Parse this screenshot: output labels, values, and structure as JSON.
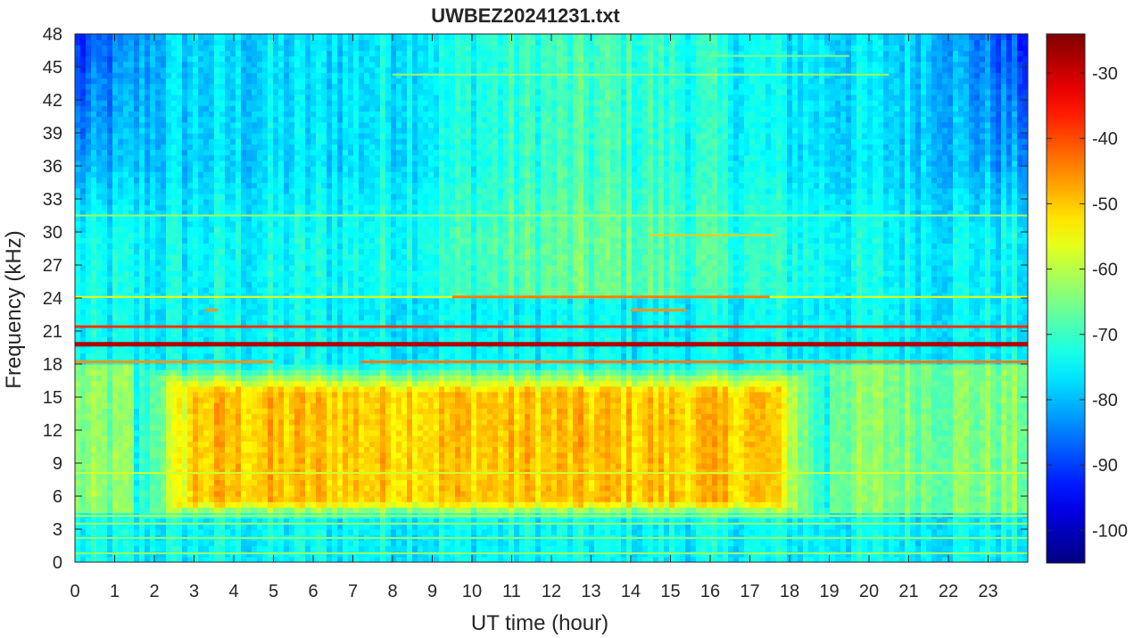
{
  "chart_data": {
    "type": "heatmap",
    "title": "UWBEZ20241231.txt",
    "xlabel": "UT time (hour)",
    "ylabel": "Frequency (kHz)",
    "xlim": [
      0,
      24
    ],
    "ylim": [
      0,
      48
    ],
    "x_ticks": [
      0,
      1,
      2,
      3,
      4,
      5,
      6,
      7,
      8,
      9,
      10,
      11,
      12,
      13,
      14,
      15,
      16,
      17,
      18,
      19,
      20,
      21,
      22,
      23
    ],
    "y_ticks": [
      0,
      3,
      6,
      9,
      12,
      15,
      18,
      21,
      24,
      27,
      30,
      33,
      36,
      39,
      42,
      45,
      48
    ],
    "colorbar": {
      "colormap": "jet",
      "clim": [
        -105,
        -24
      ],
      "ticks": [
        -30,
        -40,
        -50,
        -60,
        -70,
        -80,
        -90,
        -100
      ]
    },
    "background_level": {
      "below_30kHz": -75,
      "above_36kHz": -78,
      "edges_top_corners": -92
    },
    "broadband_region": {
      "t_start": 3,
      "t_end": 17.5,
      "f_low": 5,
      "f_high": 16,
      "level": -50
    },
    "narrowband_lines": [
      {
        "freq": 19.8,
        "t_start": 0,
        "t_end": 24,
        "level": -28
      },
      {
        "freq": 21.4,
        "t_start": 0,
        "t_end": 24,
        "level": -38
      },
      {
        "freq": 18.2,
        "t_start": 0,
        "t_end": 5,
        "level": -46
      },
      {
        "freq": 18.2,
        "t_start": 7.2,
        "t_end": 24,
        "level": -44
      },
      {
        "freq": 24.1,
        "t_start": 0,
        "t_end": 24,
        "level": -55
      },
      {
        "freq": 24.1,
        "t_start": 9.5,
        "t_end": 17.5,
        "level": -44
      },
      {
        "freq": 22.9,
        "t_start": 3.3,
        "t_end": 3.6,
        "level": -46
      },
      {
        "freq": 22.9,
        "t_start": 14,
        "t_end": 15.4,
        "level": -46
      },
      {
        "freq": 29.7,
        "t_start": 14.5,
        "t_end": 17.6,
        "level": -50
      },
      {
        "freq": 31.5,
        "t_start": 11.1,
        "t_end": 11.8,
        "level": -48
      },
      {
        "freq": 31.5,
        "t_start": 0,
        "t_end": 24,
        "level": -62
      },
      {
        "freq": 44.3,
        "t_start": 8,
        "t_end": 20.5,
        "level": -62
      },
      {
        "freq": 46,
        "t_start": 16,
        "t_end": 19.5,
        "level": -65
      },
      {
        "freq": 8.1,
        "t_start": 0,
        "t_end": 24,
        "level": -58
      },
      {
        "freq": 4.2,
        "t_start": 0,
        "t_end": 24,
        "level": -60
      },
      {
        "freq": 3.5,
        "t_start": 0,
        "t_end": 24,
        "level": -62
      },
      {
        "freq": 2.2,
        "t_start": 0,
        "t_end": 24,
        "level": -63
      },
      {
        "freq": 0.8,
        "t_start": 0,
        "t_end": 24,
        "level": -62
      }
    ]
  }
}
